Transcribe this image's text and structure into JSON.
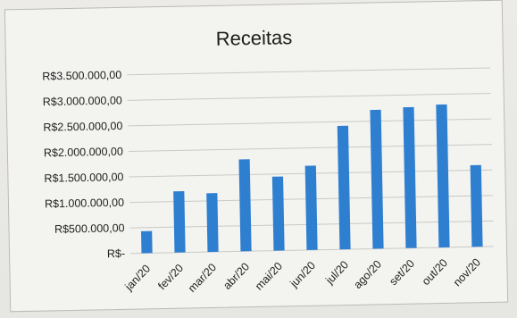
{
  "chart_data": {
    "type": "bar",
    "title": "Receitas",
    "xlabel": "",
    "ylabel": "",
    "categories": [
      "jan/20",
      "fev/20",
      "mar/20",
      "abr/20",
      "mai/20",
      "jun/20",
      "jul/20",
      "ago/20",
      "set/20",
      "out/20",
      "nov/20"
    ],
    "values": [
      430000,
      1200000,
      1150000,
      1800000,
      1450000,
      1650000,
      2420000,
      2720000,
      2760000,
      2800000,
      1600000
    ],
    "ylim": [
      0,
      3500000
    ],
    "yticks": [
      0,
      500000,
      1000000,
      1500000,
      2000000,
      2500000,
      3000000,
      3500000
    ],
    "ytick_labels": [
      "R$-",
      "R$500.000,00",
      "R$1.000.000,00",
      "R$1.500.000,00",
      "R$2.000.000,00",
      "R$2.500.000,00",
      "R$3.000.000,00",
      "R$3.500.000,00"
    ],
    "grid": true,
    "legend": "none",
    "bar_color": "#2f7fd1",
    "grid_color": "#c9c9c6"
  }
}
